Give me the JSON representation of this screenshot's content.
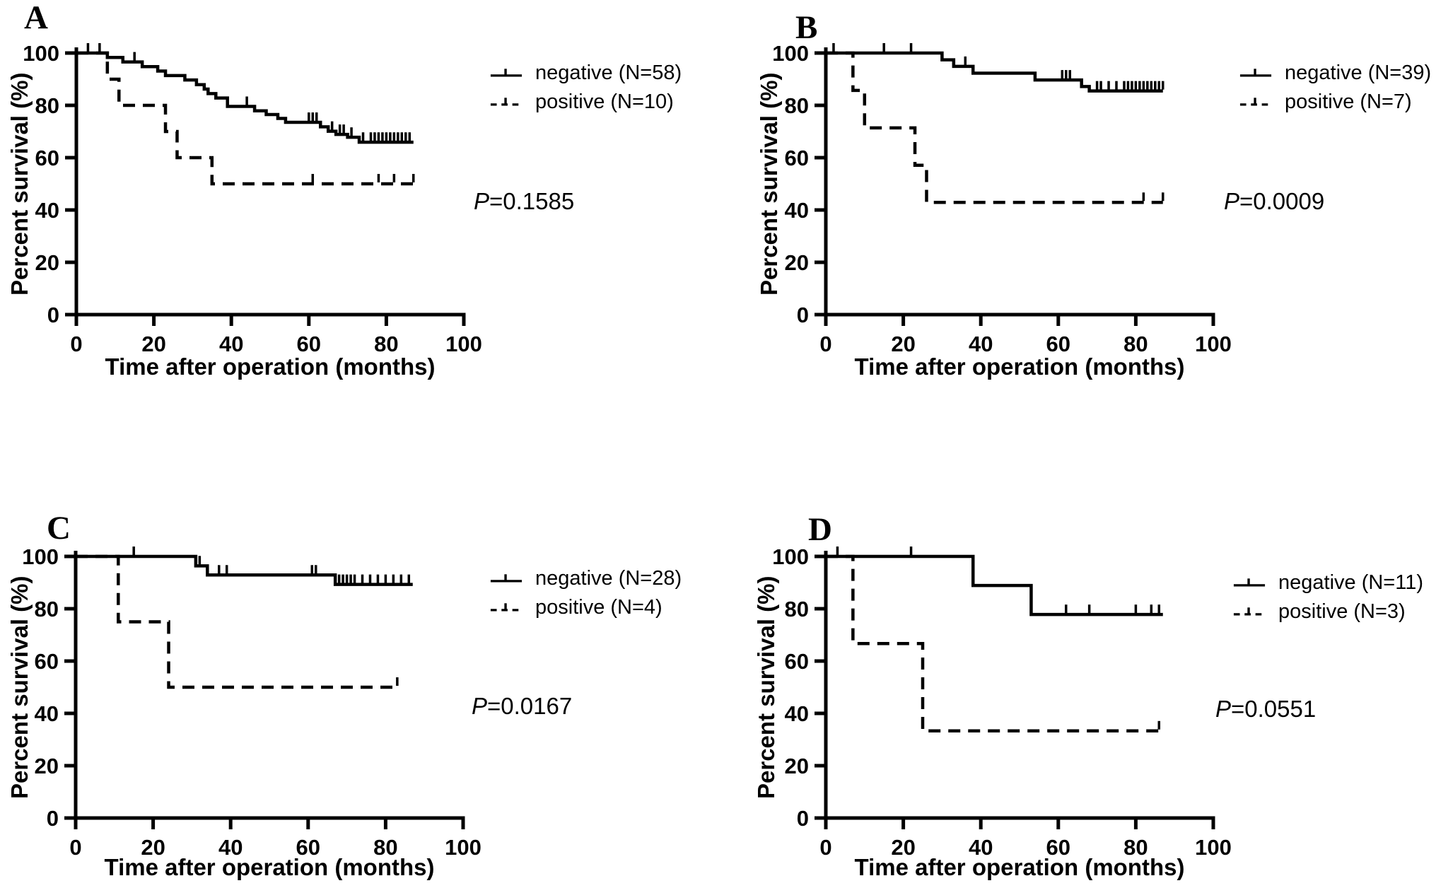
{
  "colors": {
    "foreground": "#000000",
    "background": "#ffffff"
  },
  "chart_data": [
    {
      "panel": "A",
      "type": "line",
      "kind": "kaplan-meier-step",
      "xlabel": "Time after operation (months)",
      "ylabel": "Percent survival (%)",
      "xlim": [
        0,
        100
      ],
      "ylim": [
        0,
        100
      ],
      "xticks": [
        0,
        20,
        40,
        60,
        80,
        100
      ],
      "yticks": [
        0,
        20,
        40,
        60,
        80,
        100
      ],
      "grid": false,
      "legend_position": "right",
      "p": {
        "italic": "P",
        "rest": "=0.1585"
      },
      "series": [
        {
          "name": "negative (N=58)",
          "style": "solid",
          "steps": [
            [
              0,
              100
            ],
            [
              8,
              98.3
            ],
            [
              12,
              96.6
            ],
            [
              17,
              94.8
            ],
            [
              21,
              93.1
            ],
            [
              23,
              91.4
            ],
            [
              28,
              89.7
            ],
            [
              31,
              87.9
            ],
            [
              33,
              86.2
            ],
            [
              34,
              84.5
            ],
            [
              36,
              82.8
            ],
            [
              39,
              79.6
            ],
            [
              46,
              77.9
            ],
            [
              49,
              76.5
            ],
            [
              52,
              75
            ],
            [
              54,
              73.5
            ],
            [
              63,
              71.8
            ],
            [
              65,
              70.1
            ],
            [
              67,
              68.9
            ],
            [
              70,
              67.8
            ],
            [
              73,
              65.9
            ],
            [
              87,
              65.9
            ]
          ],
          "censors": [
            3,
            6,
            15,
            44,
            60,
            61,
            62,
            66,
            68,
            69,
            71,
            74,
            76,
            77,
            78,
            79,
            80,
            81,
            82,
            83,
            84,
            85,
            86
          ]
        },
        {
          "name": "positive (N=10)",
          "style": "dashed",
          "steps": [
            [
              0,
              100
            ],
            [
              8,
              90
            ],
            [
              11,
              80
            ],
            [
              23,
              70
            ],
            [
              26,
              60
            ],
            [
              35,
              50
            ],
            [
              87,
              50
            ]
          ],
          "censors": [
            61,
            78,
            82,
            87
          ]
        }
      ]
    },
    {
      "panel": "B",
      "type": "line",
      "kind": "kaplan-meier-step",
      "xlabel": "Time after operation (months)",
      "ylabel": "Percent survival (%)",
      "xlim": [
        0,
        100
      ],
      "ylim": [
        0,
        100
      ],
      "xticks": [
        0,
        20,
        40,
        60,
        80,
        100
      ],
      "yticks": [
        0,
        20,
        40,
        60,
        80,
        100
      ],
      "grid": false,
      "legend_position": "right",
      "p": {
        "italic": "P",
        "rest": "=0.0009"
      },
      "series": [
        {
          "name": "negative (N=39)",
          "style": "solid",
          "steps": [
            [
              0,
              100
            ],
            [
              30,
              97.4
            ],
            [
              33,
              94.9
            ],
            [
              38,
              92.3
            ],
            [
              54,
              89.7
            ],
            [
              66,
              87.2
            ],
            [
              68,
              85.5
            ],
            [
              87,
              85.5
            ]
          ],
          "censors": [
            2,
            15,
            22,
            36,
            61,
            62,
            63,
            70,
            71,
            73,
            75,
            77,
            78,
            79,
            80,
            81,
            82,
            83,
            84,
            85,
            86,
            87
          ]
        },
        {
          "name": "positive (N=7)",
          "style": "dashed",
          "steps": [
            [
              0,
              100
            ],
            [
              7,
              85.7
            ],
            [
              10,
              71.4
            ],
            [
              23,
              57.1
            ],
            [
              26,
              42.9
            ],
            [
              87,
              42.9
            ]
          ],
          "censors": [
            82,
            87
          ]
        }
      ]
    },
    {
      "panel": "C",
      "type": "line",
      "kind": "kaplan-meier-step",
      "xlabel": "Time after operation (months)",
      "ylabel": "Percent survival (%)",
      "xlim": [
        0,
        100
      ],
      "ylim": [
        0,
        100
      ],
      "xticks": [
        0,
        20,
        40,
        60,
        80,
        100
      ],
      "yticks": [
        0,
        20,
        40,
        60,
        80,
        100
      ],
      "grid": false,
      "legend_position": "right",
      "p": {
        "italic": "P",
        "rest": "=0.0167"
      },
      "series": [
        {
          "name": "negative (N=28)",
          "style": "solid",
          "steps": [
            [
              0,
              100
            ],
            [
              31,
              96.4
            ],
            [
              34,
              92.9
            ],
            [
              67,
              89.3
            ],
            [
              87,
              89.3
            ]
          ],
          "censors": [
            15,
            32,
            37,
            39,
            61,
            62,
            68,
            69,
            70,
            71,
            72,
            74,
            76,
            78,
            80,
            82,
            84,
            86
          ]
        },
        {
          "name": "positive (N=4)",
          "style": "dashed",
          "steps": [
            [
              0,
              100
            ],
            [
              11,
              75
            ],
            [
              24,
              50
            ],
            [
              83,
              50
            ]
          ],
          "censors": [
            83
          ]
        }
      ]
    },
    {
      "panel": "D",
      "type": "line",
      "kind": "kaplan-meier-step",
      "xlabel": "Time after operation (months)",
      "ylabel": "Percent survival (%)",
      "xlim": [
        0,
        100
      ],
      "ylim": [
        0,
        100
      ],
      "xticks": [
        0,
        20,
        40,
        60,
        80,
        100
      ],
      "yticks": [
        0,
        20,
        40,
        60,
        80,
        100
      ],
      "grid": false,
      "legend_position": "right",
      "p": {
        "italic": "P",
        "rest": "=0.0551"
      },
      "series": [
        {
          "name": "negative (N=11)",
          "style": "solid",
          "steps": [
            [
              0,
              100
            ],
            [
              38,
              88.9
            ],
            [
              53,
              77.8
            ],
            [
              87,
              77.8
            ]
          ],
          "censors": [
            3,
            22,
            62,
            68,
            80,
            84,
            86
          ]
        },
        {
          "name": "positive (N=3)",
          "style": "dashed",
          "steps": [
            [
              0,
              100
            ],
            [
              7,
              66.7
            ],
            [
              25,
              33.3
            ],
            [
              86,
              33.3
            ]
          ],
          "censors": [
            86
          ]
        }
      ]
    }
  ]
}
